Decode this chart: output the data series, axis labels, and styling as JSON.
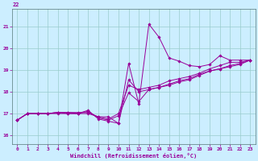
{
  "bg_color": "#cceeff",
  "line_color": "#990099",
  "grid_color": "#99cccc",
  "xlim": [
    -0.5,
    23.5
  ],
  "ylim": [
    15.6,
    21.8
  ],
  "yticks": [
    16,
    17,
    18,
    19,
    20,
    21
  ],
  "xticks": [
    0,
    1,
    2,
    3,
    4,
    5,
    6,
    7,
    8,
    9,
    10,
    11,
    12,
    13,
    14,
    15,
    16,
    17,
    18,
    19,
    20,
    21,
    22,
    23
  ],
  "xlabel": "Windchill (Refroidissement éolien,°C)",
  "lines": [
    [
      0,
      16.7,
      1,
      17.0,
      2,
      17.0,
      3,
      17.0,
      4,
      17.0,
      5,
      17.0,
      6,
      17.0,
      7,
      17.0,
      8,
      16.85,
      9,
      16.85,
      10,
      16.55,
      11,
      19.3,
      12,
      17.45,
      13,
      21.1,
      14,
      20.5,
      15,
      19.55,
      16,
      19.4,
      17,
      19.2,
      18,
      19.15,
      19,
      19.25,
      20,
      19.65,
      21,
      19.45,
      22,
      19.45,
      23,
      19.45
    ],
    [
      0,
      16.7,
      1,
      17.0,
      2,
      17.0,
      3,
      17.0,
      4,
      17.05,
      5,
      17.05,
      6,
      17.05,
      7,
      17.05,
      8,
      16.85,
      9,
      16.75,
      10,
      17.0,
      11,
      18.3,
      12,
      18.1,
      13,
      18.2,
      14,
      18.3,
      15,
      18.5,
      16,
      18.6,
      17,
      18.7,
      18,
      18.85,
      19,
      19.05,
      20,
      19.2,
      21,
      19.35,
      22,
      19.35,
      23,
      19.45
    ],
    [
      0,
      16.7,
      1,
      17.0,
      2,
      17.0,
      3,
      17.0,
      4,
      17.05,
      5,
      17.05,
      6,
      17.0,
      7,
      17.1,
      8,
      16.8,
      9,
      16.7,
      10,
      16.9,
      11,
      17.95,
      12,
      17.55,
      13,
      18.1,
      14,
      18.2,
      15,
      18.35,
      16,
      18.5,
      17,
      18.6,
      18,
      18.8,
      19,
      18.95,
      20,
      19.05,
      21,
      19.2,
      22,
      19.3,
      23,
      19.45
    ],
    [
      0,
      16.7,
      1,
      17.0,
      2,
      17.0,
      3,
      17.0,
      4,
      17.05,
      5,
      17.0,
      6,
      17.0,
      7,
      17.15,
      8,
      16.75,
      9,
      16.65,
      10,
      16.55,
      11,
      18.55,
      12,
      18.0,
      13,
      18.1,
      14,
      18.2,
      15,
      18.3,
      16,
      18.45,
      17,
      18.55,
      18,
      18.75,
      19,
      18.95,
      20,
      19.05,
      21,
      19.15,
      22,
      19.25,
      23,
      19.45
    ]
  ]
}
